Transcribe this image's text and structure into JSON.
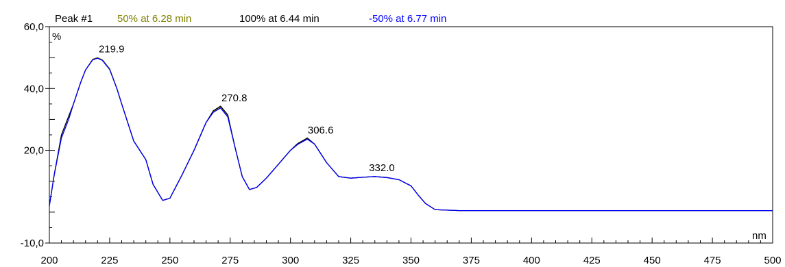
{
  "chart_data": {
    "type": "line",
    "title": "",
    "xlabel": "",
    "ylabel": "",
    "x_unit": "nm",
    "y_unit": "%",
    "xlim": [
      200,
      500
    ],
    "ylim": [
      -10,
      60
    ],
    "x_ticks": [
      200,
      225,
      250,
      275,
      300,
      325,
      350,
      375,
      400,
      425,
      450,
      475,
      500
    ],
    "y_ticks": [
      {
        "value": 60,
        "label": "60,0"
      },
      {
        "value": 40,
        "label": "40,0"
      },
      {
        "value": 20,
        "label": "20,0"
      },
      {
        "value": -10,
        "label": "-10,0"
      }
    ],
    "legend": {
      "peak": "Peak #1",
      "entries": [
        {
          "text": "50% at 6.28 min",
          "color": "#808000"
        },
        {
          "text": "100% at 6.44 min",
          "color": "#000000"
        },
        {
          "text": "-50% at 6.77 min",
          "color": "#0000ff"
        }
      ]
    },
    "peak_labels": [
      {
        "x": 219.9,
        "y": 49.9,
        "text": "219.9"
      },
      {
        "x": 270.8,
        "y": 34.1,
        "text": "270.8"
      },
      {
        "x": 306.6,
        "y": 23.7,
        "text": "306.6"
      },
      {
        "x": 332.0,
        "y": 11.5,
        "text": "332.0"
      }
    ],
    "series": [
      {
        "name": "50% at 6.28 min",
        "color": "#808000",
        "x": [
          200,
          202,
          205,
          208,
          210,
          213,
          215,
          218,
          220,
          222,
          225,
          228,
          230,
          235,
          240,
          243,
          247,
          250,
          255,
          260,
          265,
          268,
          271,
          274,
          277,
          280,
          283,
          286,
          290,
          295,
          300,
          303,
          307,
          310,
          315,
          320,
          325,
          330,
          335,
          340,
          345,
          350,
          353,
          356,
          360,
          370,
          400,
          450,
          500
        ],
        "y": [
          2,
          12,
          24,
          30,
          35,
          42,
          46,
          49.5,
          50,
          49.3,
          46.4,
          40,
          35,
          23,
          17,
          9,
          3.8,
          4.5,
          12,
          20,
          29,
          32.5,
          34,
          31,
          21,
          11.5,
          7.3,
          8,
          11,
          15.5,
          20,
          22,
          23.9,
          22,
          16,
          11.5,
          11,
          11.3,
          11.5,
          11.2,
          10.5,
          8.5,
          5.5,
          2.8,
          0.8,
          0.5,
          0.5,
          0.5,
          0.5
        ]
      },
      {
        "name": "100% at 6.44 min",
        "color": "#000000",
        "x": [
          200,
          202,
          205,
          208,
          210,
          213,
          215,
          218,
          220,
          222,
          225,
          228,
          230,
          235,
          240,
          243,
          247,
          250,
          255,
          260,
          265,
          268,
          271,
          274,
          277,
          280,
          283,
          286,
          290,
          295,
          300,
          303,
          307,
          310,
          315,
          320,
          325,
          330,
          335,
          340,
          345,
          350,
          353,
          356,
          360,
          370,
          400,
          450,
          500
        ],
        "y": [
          2,
          12,
          25,
          31,
          35,
          42,
          46,
          49.3,
          49.8,
          49.1,
          46.2,
          40,
          35,
          23,
          17,
          9,
          3.8,
          4.5,
          12,
          20,
          29,
          32.8,
          34.3,
          31.5,
          21,
          11.5,
          7.3,
          8,
          11,
          15.5,
          20,
          22.2,
          24,
          22,
          16,
          11.5,
          11,
          11.3,
          11.5,
          11.2,
          10.5,
          8.5,
          5.5,
          2.8,
          0.8,
          0.5,
          0.5,
          0.5,
          0.5
        ]
      },
      {
        "name": "-50% at 6.77 min",
        "color": "#0000ff",
        "x": [
          200,
          202,
          205,
          208,
          210,
          213,
          215,
          218,
          220,
          222,
          225,
          228,
          230,
          235,
          240,
          243,
          247,
          250,
          255,
          260,
          265,
          268,
          271,
          274,
          277,
          280,
          283,
          286,
          290,
          295,
          300,
          303,
          307,
          310,
          315,
          320,
          325,
          330,
          335,
          340,
          345,
          350,
          353,
          356,
          360,
          370,
          400,
          450,
          500
        ],
        "y": [
          2,
          12,
          24,
          30,
          35,
          42,
          46,
          49.3,
          49.8,
          49.1,
          46.2,
          40,
          35,
          23,
          17,
          9,
          3.8,
          4.5,
          12,
          20,
          29,
          32.3,
          33.7,
          30.8,
          21,
          11.5,
          7.3,
          8,
          11,
          15.5,
          20,
          21.9,
          23.6,
          22,
          16,
          11.5,
          11,
          11.3,
          11.5,
          11.2,
          10.5,
          8.5,
          5.5,
          2.8,
          0.8,
          0.5,
          0.5,
          0.5,
          0.5
        ]
      }
    ]
  }
}
